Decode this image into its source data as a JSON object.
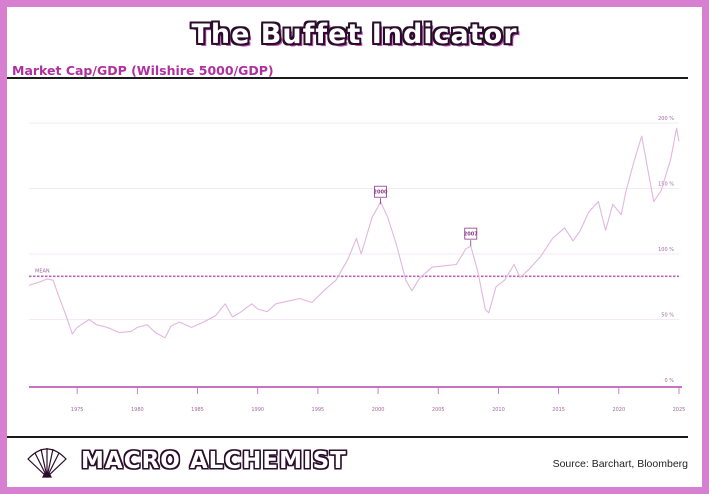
{
  "title": "The Buffet Indicator",
  "subtitle": "Market Cap/GDP (Wilshire 5000/GDP)",
  "brand": "MACRO ALCHEMIST",
  "source": "Source: Barchart, Bloomberg",
  "colors": {
    "frame": "#d77fd0",
    "line": "#e2b6e0",
    "mean_line": "#c060b8",
    "accent": "#b0309f"
  },
  "chart_data": {
    "type": "line",
    "xlim": [
      1971,
      2025
    ],
    "ylim": [
      0,
      200
    ],
    "x_ticks": [
      "1975",
      "1980",
      "1985",
      "1990",
      "1995",
      "2000",
      "2005",
      "2010",
      "2015",
      "2020",
      "2025"
    ],
    "y_ticks": [
      "0 %",
      "50 %",
      "100 %",
      "150 %",
      "200 %"
    ],
    "grid": true,
    "mean": {
      "label": "MEAN",
      "value": 83
    },
    "annotations": [
      {
        "label": "2000",
        "x": 2000.2,
        "y": 138
      },
      {
        "label": "2007",
        "x": 2007.7,
        "y": 106
      }
    ],
    "series": [
      {
        "x": [
          1971.0,
          1972.0,
          1972.5,
          1973.0,
          1973.5,
          1974.0,
          1974.6,
          1975.0,
          1976.0,
          1976.6,
          1977.5,
          1978.5,
          1979.5,
          1980.0,
          1980.8,
          1981.5,
          1982.3,
          1982.8,
          1983.5,
          1984.5,
          1985.5,
          1986.5,
          1987.3,
          1987.9,
          1988.5,
          1989.5,
          1990.0,
          1990.8,
          1991.5,
          1992.5,
          1993.5,
          1994.5,
          1995.5,
          1996.5,
          1997.5,
          1998.2,
          1998.6,
          1999.5,
          2000.0,
          2000.2,
          2000.8,
          2001.5,
          2002.3,
          2002.8,
          2003.5,
          2004.5,
          2005.5,
          2006.5,
          2007.3,
          2007.7,
          2008.3,
          2008.9,
          2009.2,
          2009.8,
          2010.5,
          2011.3,
          2011.8,
          2012.5,
          2013.5,
          2014.5,
          2015.5,
          2016.2,
          2016.8,
          2017.5,
          2018.3,
          2018.9,
          2019.5,
          2020.2,
          2020.6,
          2021.3,
          2021.9,
          2022.5,
          2022.9,
          2023.5,
          2024.3,
          2024.8,
          2025.0
        ],
        "y": [
          76,
          79,
          81,
          80,
          67,
          55,
          39,
          44,
          50,
          46,
          44,
          40,
          41,
          44,
          46,
          40,
          36,
          45,
          48,
          44,
          48,
          53,
          62,
          52,
          55,
          62,
          58,
          56,
          62,
          64,
          66,
          63,
          72,
          80,
          96,
          112,
          100,
          128,
          136,
          140,
          128,
          108,
          80,
          72,
          82,
          90,
          91,
          92,
          104,
          106,
          86,
          58,
          55,
          75,
          80,
          92,
          82,
          88,
          98,
          112,
          120,
          110,
          118,
          132,
          140,
          118,
          138,
          130,
          148,
          172,
          190,
          160,
          140,
          148,
          172,
          196,
          186
        ]
      }
    ]
  }
}
